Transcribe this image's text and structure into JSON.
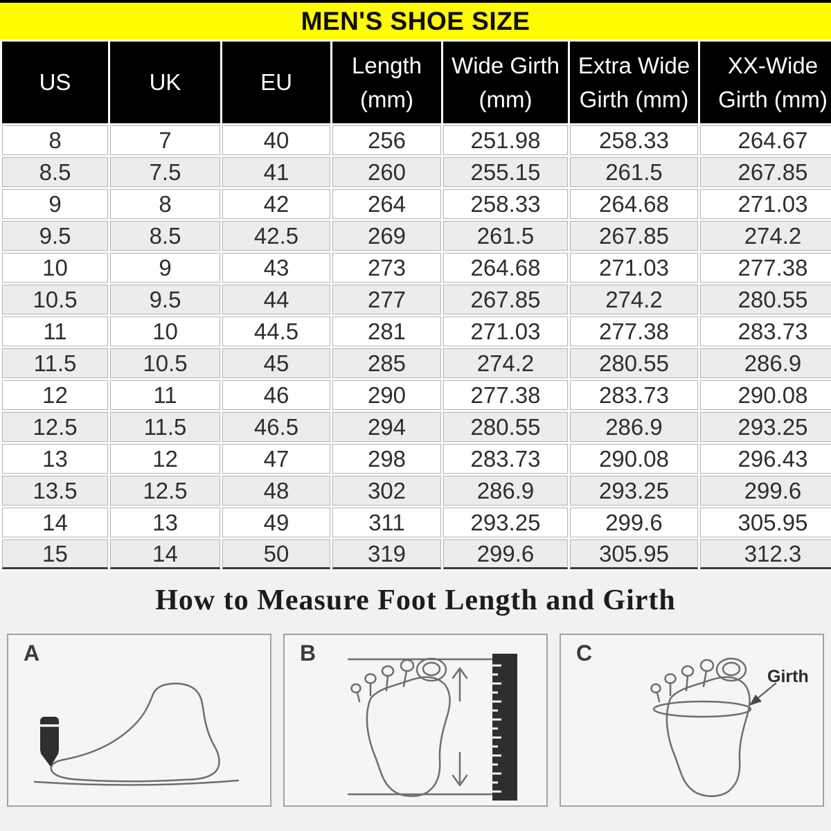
{
  "banner": {
    "title": "MEN'S SHOE SIZE"
  },
  "table": {
    "columns": [
      {
        "line1": "US",
        "line2": ""
      },
      {
        "line1": "UK",
        "line2": ""
      },
      {
        "line1": "EU",
        "line2": ""
      },
      {
        "line1": "Length",
        "line2": "(mm)"
      },
      {
        "line1": "Wide Girth",
        "line2": "(mm)"
      },
      {
        "line1": "Extra Wide",
        "line2": "Girth (mm)"
      },
      {
        "line1": "XX-Wide",
        "line2": "Girth (mm)"
      }
    ],
    "rows": [
      [
        "8",
        "7",
        "40",
        "256",
        "251.98",
        "258.33",
        "264.67"
      ],
      [
        "8.5",
        "7.5",
        "41",
        "260",
        "255.15",
        "261.5",
        "267.85"
      ],
      [
        "9",
        "8",
        "42",
        "264",
        "258.33",
        "264.68",
        "271.03"
      ],
      [
        "9.5",
        "8.5",
        "42.5",
        "269",
        "261.5",
        "267.85",
        "274.2"
      ],
      [
        "10",
        "9",
        "43",
        "273",
        "264.68",
        "271.03",
        "277.38"
      ],
      [
        "10.5",
        "9.5",
        "44",
        "277",
        "267.85",
        "274.2",
        "280.55"
      ],
      [
        "11",
        "10",
        "44.5",
        "281",
        "271.03",
        "277.38",
        "283.73"
      ],
      [
        "11.5",
        "10.5",
        "45",
        "285",
        "274.2",
        "280.55",
        "286.9"
      ],
      [
        "12",
        "11",
        "46",
        "290",
        "277.38",
        "283.73",
        "290.08"
      ],
      [
        "12.5",
        "11.5",
        "46.5",
        "294",
        "280.55",
        "286.9",
        "293.25"
      ],
      [
        "13",
        "12",
        "47",
        "298",
        "283.73",
        "290.08",
        "296.43"
      ],
      [
        "13.5",
        "12.5",
        "48",
        "302",
        "286.9",
        "293.25",
        "299.6"
      ],
      [
        "14",
        "13",
        "49",
        "311",
        "293.25",
        "299.6",
        "305.95"
      ],
      [
        "15",
        "14",
        "50",
        "319",
        "299.6",
        "305.95",
        "312.3"
      ]
    ]
  },
  "measure": {
    "title": "How to Measure Foot Length and Girth",
    "panels": [
      {
        "label": "A"
      },
      {
        "label": "B"
      },
      {
        "label": "C",
        "annotation": "Girth"
      }
    ]
  },
  "chart_data": {
    "type": "table",
    "title": "MEN'S SHOE SIZE",
    "columns": [
      "US",
      "UK",
      "EU",
      "Length (mm)",
      "Wide Girth (mm)",
      "Extra Wide Girth (mm)",
      "XX-Wide Girth (mm)"
    ],
    "rows": [
      [
        8,
        7,
        40,
        256,
        251.98,
        258.33,
        264.67
      ],
      [
        8.5,
        7.5,
        41,
        260,
        255.15,
        261.5,
        267.85
      ],
      [
        9,
        8,
        42,
        264,
        258.33,
        264.68,
        271.03
      ],
      [
        9.5,
        8.5,
        42.5,
        269,
        261.5,
        267.85,
        274.2
      ],
      [
        10,
        9,
        43,
        273,
        264.68,
        271.03,
        277.38
      ],
      [
        10.5,
        9.5,
        44,
        277,
        267.85,
        274.2,
        280.55
      ],
      [
        11,
        10,
        44.5,
        281,
        271.03,
        277.38,
        283.73
      ],
      [
        11.5,
        10.5,
        45,
        285,
        274.2,
        280.55,
        286.9
      ],
      [
        12,
        11,
        46,
        290,
        277.38,
        283.73,
        290.08
      ],
      [
        12.5,
        11.5,
        46.5,
        294,
        280.55,
        286.9,
        293.25
      ],
      [
        13,
        12,
        47,
        298,
        283.73,
        290.08,
        296.43
      ],
      [
        13.5,
        12.5,
        48,
        302,
        286.9,
        293.25,
        299.6
      ],
      [
        14,
        13,
        49,
        311,
        293.25,
        299.6,
        305.95
      ],
      [
        15,
        14,
        50,
        319,
        299.6,
        305.95,
        312.3
      ]
    ]
  },
  "colors": {
    "banner_bg": "#FFFB00",
    "banner_text": "#0D0D0D",
    "header_bg": "#000000",
    "header_text": "#FFFFFF",
    "row_bg": "#FFFFFF",
    "row_alt_bg": "#EDECEA",
    "cell_border": "#B5B5B5",
    "section_bg": "#F2F1EF",
    "panel_bg": "#F6F5F3",
    "panel_border": "#A2A2A2",
    "diagram_stroke": "#6E6E6E",
    "diagram_dark_fill": "#2E2E2E"
  }
}
